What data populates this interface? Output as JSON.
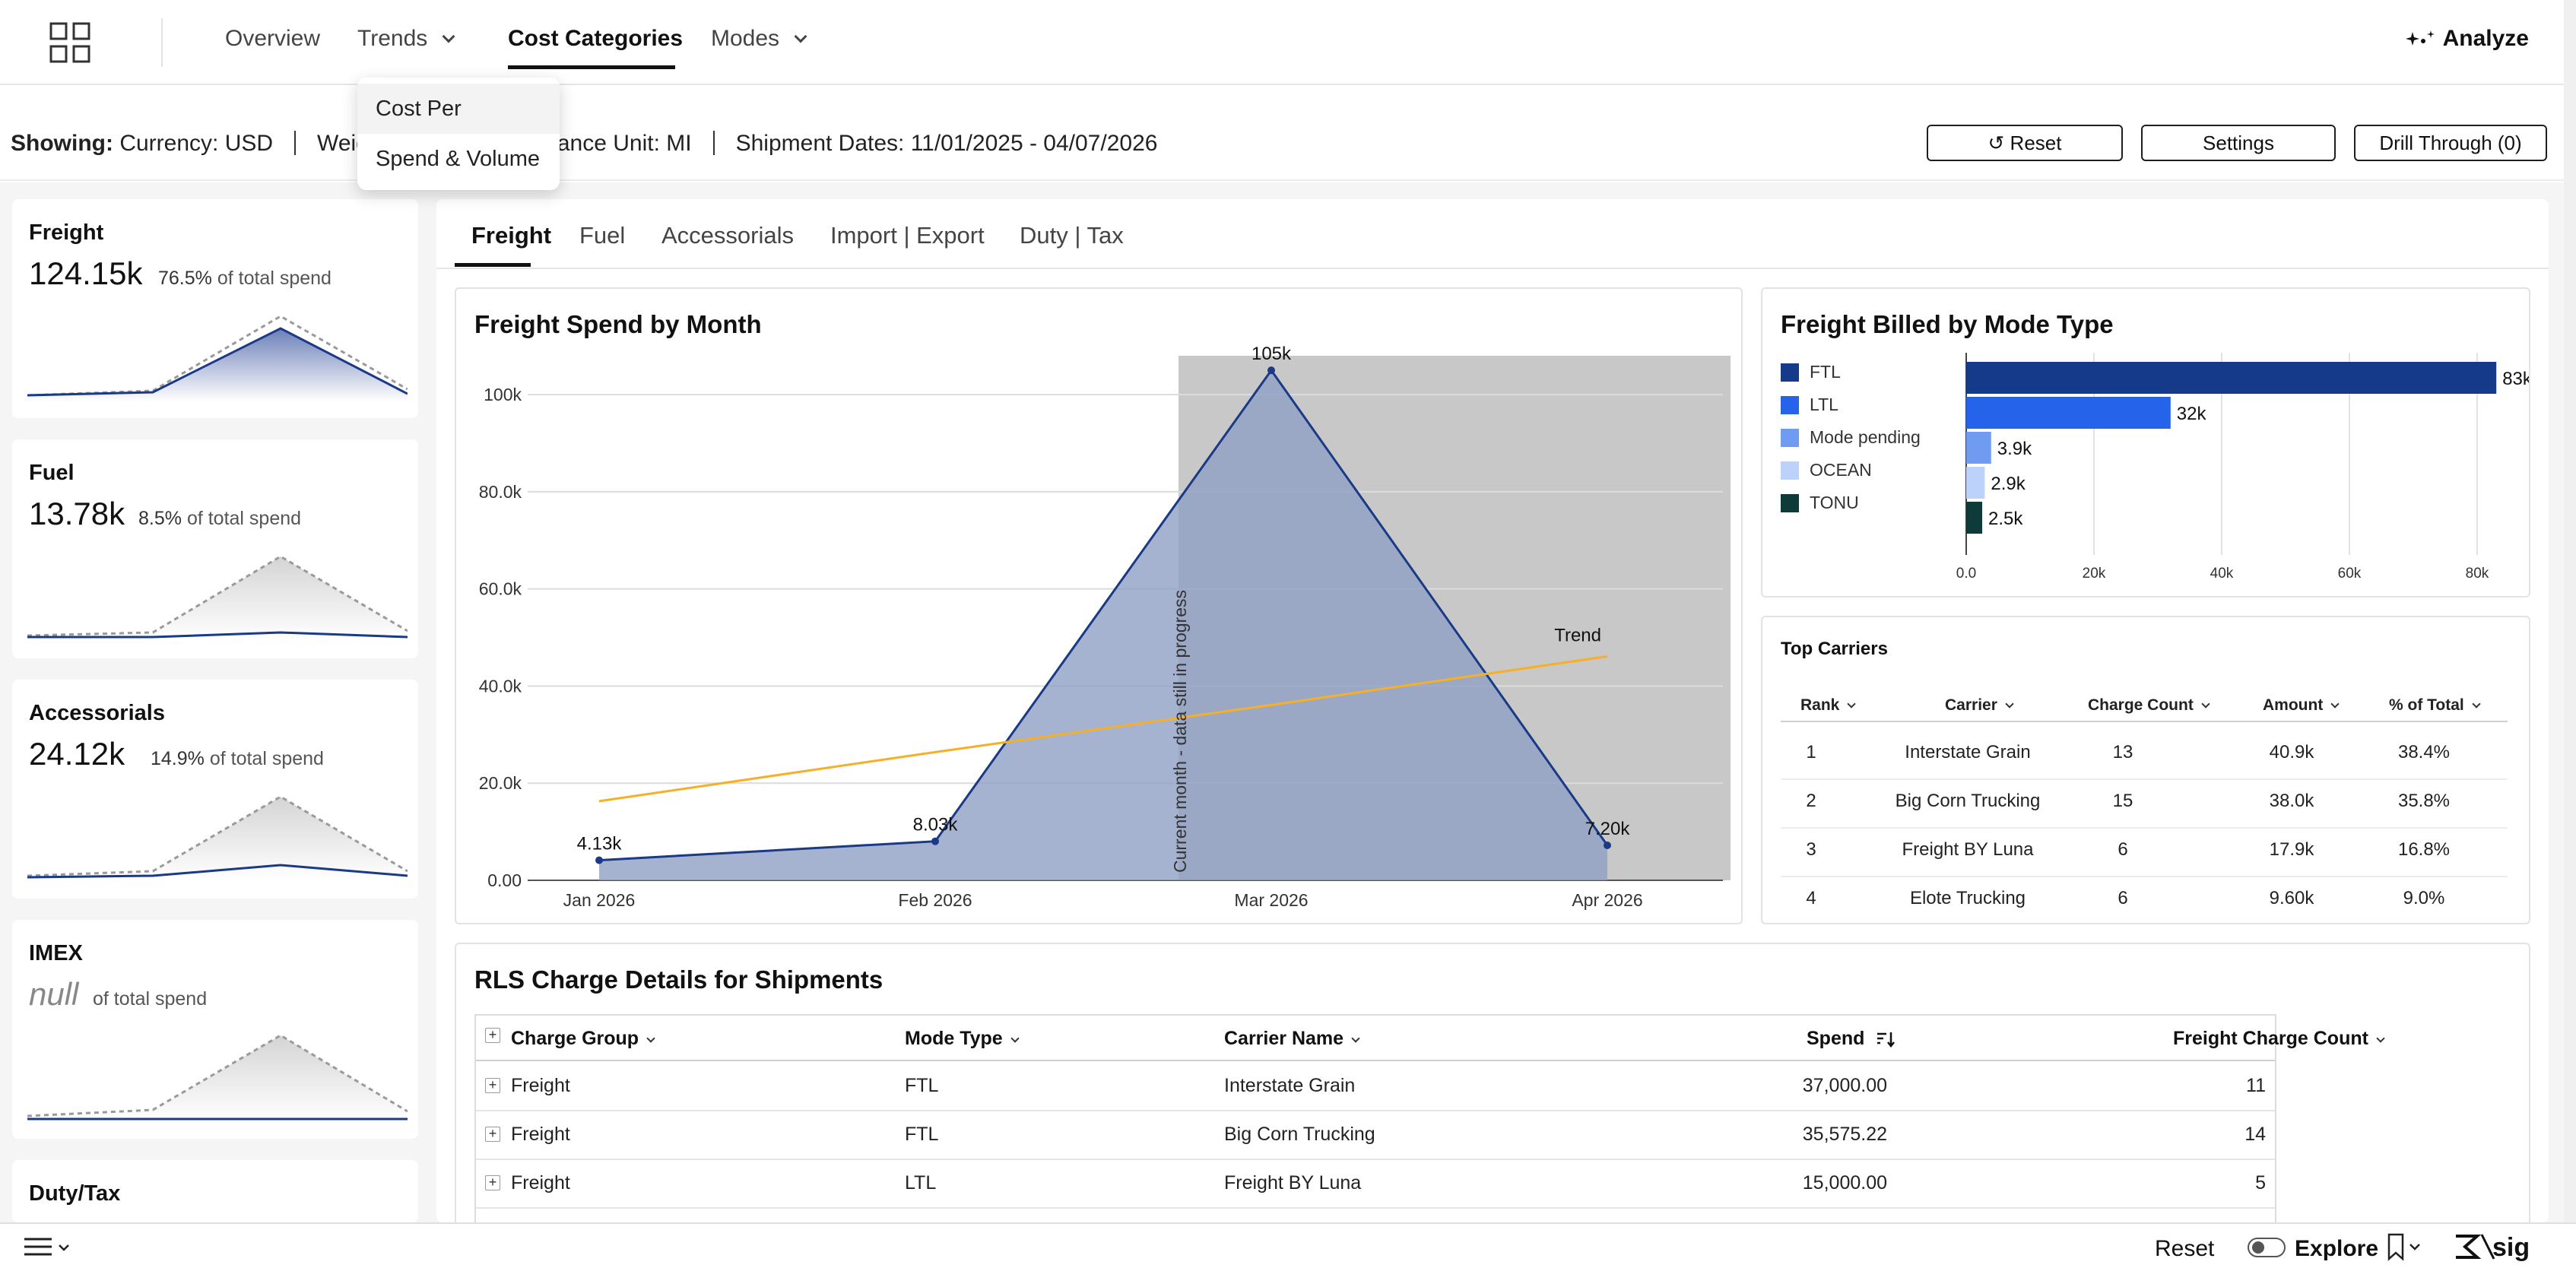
{
  "nav": {
    "items": [
      "Overview",
      "Trends",
      "Cost Categories",
      "Modes"
    ],
    "analyze_label": "Analyze"
  },
  "dropdown": {
    "items": [
      "Cost Per",
      "Spend & Volume"
    ]
  },
  "filter": {
    "showing_label": "Showing:",
    "currency": "Currency: USD",
    "weight_fragment": "Weig",
    "distance_fragment": "ance Unit: MI",
    "dates": "Shipment Dates:  11/01/2025 - 04/07/2026",
    "buttons": {
      "reset": "↺  Reset",
      "settings": "Settings",
      "drill": "Drill Through (0)"
    }
  },
  "kpis": [
    {
      "title": "Freight",
      "value": "124.15k",
      "pct": "76.5%",
      "suffix": "of total spend"
    },
    {
      "title": "Fuel",
      "value": "13.78k",
      "pct": "8.5%",
      "suffix": "of total spend"
    },
    {
      "title": "Accessorials",
      "value": "24.12k",
      "pct": "14.9%",
      "suffix": "of total spend"
    },
    {
      "title": "IMEX",
      "value": "null",
      "pct": "",
      "suffix": "of total spend"
    },
    {
      "title": "Duty/Tax",
      "value": "",
      "pct": "",
      "suffix": ""
    }
  ],
  "tabs": [
    "Freight",
    "Fuel",
    "Accessorials",
    "Import | Export",
    "Duty | Tax"
  ],
  "spend_by_month": {
    "title": "Freight Spend by Month",
    "annotation": "Current month - data still in progress",
    "trend_label": "Trend",
    "colors": {
      "area": "#8ea0c6",
      "line": "#1a3a86",
      "trend": "#f5b027",
      "shade": "#c8c8c8"
    }
  },
  "mode_type": {
    "title": "Freight Billed by Mode Type"
  },
  "top_carriers": {
    "title": "Top Carriers",
    "headers": [
      "Rank",
      "Carrier",
      "Charge Count",
      "Amount",
      "% of Total"
    ],
    "rows": [
      [
        "1",
        "Interstate Grain",
        "13",
        "40.9k",
        "38.4%"
      ],
      [
        "2",
        "Big Corn Trucking",
        "15",
        "38.0k",
        "35.8%"
      ],
      [
        "3",
        "Freight BY Luna",
        "6",
        "17.9k",
        "16.8%"
      ],
      [
        "4",
        "Elote Trucking",
        "6",
        "9.60k",
        "9.0%"
      ]
    ]
  },
  "rls": {
    "title": "RLS Charge Details for Shipments",
    "headers": [
      "Charge Group",
      "Mode Type",
      "Carrier Name",
      "Spend",
      "Freight Charge Count"
    ],
    "rows": [
      [
        "Freight",
        "FTL",
        "Interstate Grain",
        "37,000.00",
        "11"
      ],
      [
        "Freight",
        "FTL",
        "Big Corn Trucking",
        "35,575.22",
        "14"
      ],
      [
        "Freight",
        "LTL",
        "Freight BY Luna",
        "15,000.00",
        "5"
      ]
    ]
  },
  "bottom": {
    "reset": "Reset",
    "explore": "Explore",
    "brand": "sig"
  },
  "chart_data": [
    {
      "type": "area",
      "title": "Freight Spend by Month",
      "x": [
        "Jan 2026",
        "Feb 2026",
        "Mar 2026",
        "Apr 2026"
      ],
      "series": [
        {
          "values": [
            4130,
            8030,
            105000,
            7200
          ],
          "labels": [
            "4.13k",
            "8.03k",
            "105k",
            "7.20k"
          ]
        },
        {
          "name": "Trend",
          "values": [
            16300,
            26400,
            36100,
            46100
          ]
        }
      ],
      "y_ticks": [
        "0.00",
        "20.0k",
        "40.0k",
        "60.0k",
        "80.0k",
        "100k"
      ],
      "ylim": [
        0,
        100000
      ],
      "grid": true
    },
    {
      "type": "bar",
      "orientation": "horizontal",
      "title": "Freight Billed by Mode Type",
      "categories": [
        "FTL",
        "LTL",
        "Mode pending",
        "OCEAN",
        "TONU"
      ],
      "values": [
        83000,
        32000,
        3900,
        2900,
        2500
      ],
      "labels": [
        "83k",
        "32k",
        "3.9k",
        "2.9k",
        "2.5k"
      ],
      "colors": [
        "#163a8a",
        "#2563eb",
        "#6f9cf0",
        "#bcd2fa",
        "#0e3a3a"
      ],
      "x_ticks": [
        "0.0",
        "20k",
        "40k",
        "60k",
        "80k"
      ],
      "xlim": [
        0,
        80000
      ],
      "legend": "left"
    }
  ]
}
